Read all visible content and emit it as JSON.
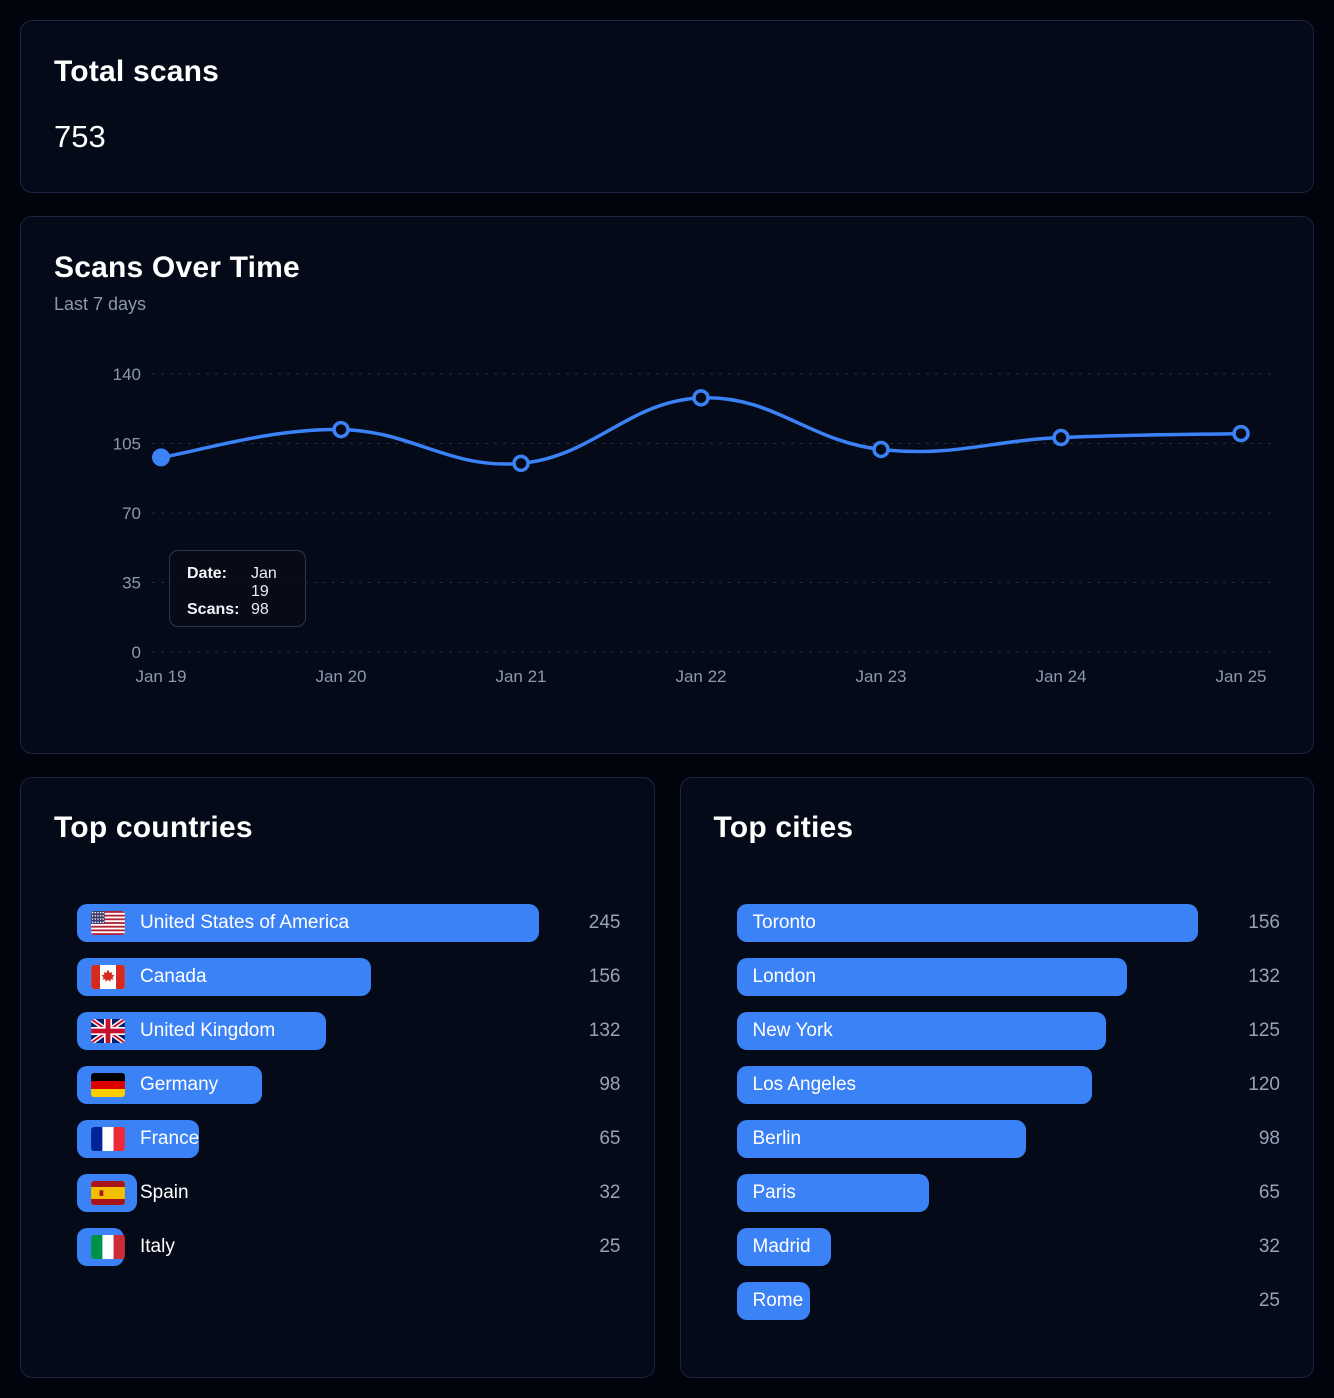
{
  "colors": {
    "accent": "#3b82f6",
    "page_bg": "#01040c",
    "card_bg": "#040a18",
    "card_border": "#1b2440",
    "muted_text": "#8b99ad",
    "value_text": "#97a3b6",
    "text": "#ffffff",
    "gridline": "#242c42"
  },
  "total": {
    "title": "Total scans",
    "value": "753"
  },
  "chart_data": [
    {
      "id": "scans_over_time",
      "type": "line",
      "title": "Scans Over Time",
      "subtitle": "Last 7 days",
      "x": [
        "Jan 19",
        "Jan 20",
        "Jan 21",
        "Jan 22",
        "Jan 23",
        "Jan 24",
        "Jan 25"
      ],
      "series": [
        {
          "name": "Scans",
          "values": [
            98,
            112,
            95,
            128,
            102,
            108,
            110
          ]
        }
      ],
      "ylim": [
        0,
        140
      ],
      "yticks": [
        0,
        35,
        70,
        105,
        140
      ],
      "grid": "horizontal-dashed",
      "legend": "none",
      "line_color": "#3b82f6",
      "active_point_index": 0,
      "tooltip": {
        "date_label": "Date:",
        "date_value": "Jan 19",
        "scans_label": "Scans:",
        "scans_value": "98"
      }
    },
    {
      "id": "top_countries",
      "type": "bar",
      "orientation": "horizontal",
      "title": "Top countries",
      "categories": [
        "United States of America",
        "Canada",
        "United Kingdom",
        "Germany",
        "France",
        "Spain",
        "Italy"
      ],
      "values": [
        245,
        156,
        132,
        98,
        65,
        32,
        25
      ],
      "flags": [
        "us",
        "ca",
        "gb",
        "de",
        "fr",
        "es",
        "it"
      ],
      "xmax": 245,
      "bar_color": "#3b82f6"
    },
    {
      "id": "top_cities",
      "type": "bar",
      "orientation": "horizontal",
      "title": "Top cities",
      "categories": [
        "Toronto",
        "London",
        "New York",
        "Los Angeles",
        "Berlin",
        "Paris",
        "Madrid",
        "Rome"
      ],
      "values": [
        156,
        132,
        125,
        120,
        98,
        65,
        32,
        25
      ],
      "xmax": 156,
      "bar_color": "#3b82f6"
    }
  ]
}
